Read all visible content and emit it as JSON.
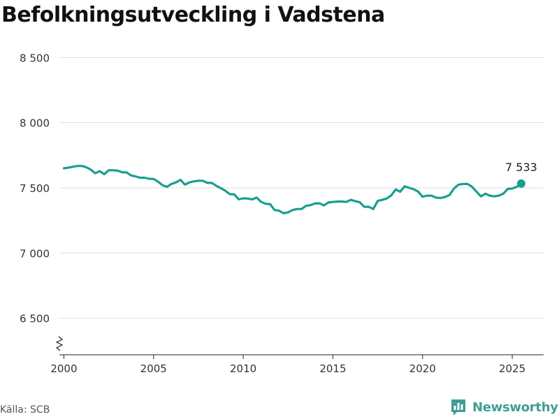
{
  "title": "Befolkningsutveckling i Vadstena",
  "source": "Källa: SCB",
  "brand": {
    "name": "Newsworthy",
    "icon": "newsworthy-logo-icon",
    "color": "#3f9e94"
  },
  "chart_data": {
    "type": "line",
    "title": "Befolkningsutveckling i Vadstena",
    "xlabel": "",
    "ylabel": "",
    "xlim": [
      1999.75,
      2026.75
    ],
    "ylim": [
      6220,
      8700
    ],
    "y_ticks": [
      {
        "value": 6500,
        "label": "6 500"
      },
      {
        "value": 7000,
        "label": "7 000"
      },
      {
        "value": 7500,
        "label": "7 500"
      },
      {
        "value": 8000,
        "label": "8 000"
      },
      {
        "value": 8500,
        "label": "8 500"
      }
    ],
    "x_ticks": [
      {
        "value": 2000,
        "label": "2000"
      },
      {
        "value": 2005,
        "label": "2005"
      },
      {
        "value": 2010,
        "label": "2010"
      },
      {
        "value": 2015,
        "label": "2015"
      },
      {
        "value": 2020,
        "label": "2020"
      },
      {
        "value": 2025,
        "label": "2025"
      }
    ],
    "grid": "horizontal",
    "axis_break": true,
    "line_color": "#1a9e8f",
    "end_label": "7 533",
    "series": [
      {
        "points": [
          [
            2000.0,
            7650
          ],
          [
            2000.25,
            7655
          ],
          [
            2000.5,
            7662
          ],
          [
            2000.75,
            7668
          ],
          [
            2001.0,
            7668
          ],
          [
            2001.25,
            7658
          ],
          [
            2001.5,
            7640
          ],
          [
            2001.75,
            7612
          ],
          [
            2002.0,
            7628
          ],
          [
            2002.25,
            7605
          ],
          [
            2002.5,
            7635
          ],
          [
            2002.75,
            7635
          ],
          [
            2003.0,
            7632
          ],
          [
            2003.25,
            7620
          ],
          [
            2003.5,
            7618
          ],
          [
            2003.75,
            7595
          ],
          [
            2004.0,
            7588
          ],
          [
            2004.25,
            7578
          ],
          [
            2004.5,
            7578
          ],
          [
            2004.75,
            7570
          ],
          [
            2005.0,
            7568
          ],
          [
            2005.25,
            7548
          ],
          [
            2005.5,
            7520
          ],
          [
            2005.75,
            7508
          ],
          [
            2006.0,
            7530
          ],
          [
            2006.25,
            7542
          ],
          [
            2006.5,
            7562
          ],
          [
            2006.75,
            7525
          ],
          [
            2007.0,
            7542
          ],
          [
            2007.25,
            7550
          ],
          [
            2007.5,
            7555
          ],
          [
            2007.75,
            7555
          ],
          [
            2008.0,
            7538
          ],
          [
            2008.25,
            7538
          ],
          [
            2008.5,
            7515
          ],
          [
            2008.75,
            7498
          ],
          [
            2009.0,
            7478
          ],
          [
            2009.25,
            7452
          ],
          [
            2009.5,
            7450
          ],
          [
            2009.75,
            7412
          ],
          [
            2010.0,
            7420
          ],
          [
            2010.25,
            7418
          ],
          [
            2010.5,
            7412
          ],
          [
            2010.75,
            7425
          ],
          [
            2011.0,
            7392
          ],
          [
            2011.25,
            7378
          ],
          [
            2011.5,
            7375
          ],
          [
            2011.75,
            7330
          ],
          [
            2012.0,
            7325
          ],
          [
            2012.25,
            7305
          ],
          [
            2012.5,
            7312
          ],
          [
            2012.75,
            7330
          ],
          [
            2013.0,
            7338
          ],
          [
            2013.25,
            7338
          ],
          [
            2013.5,
            7362
          ],
          [
            2013.75,
            7368
          ],
          [
            2014.0,
            7380
          ],
          [
            2014.25,
            7382
          ],
          [
            2014.5,
            7365
          ],
          [
            2014.75,
            7388
          ],
          [
            2015.0,
            7392
          ],
          [
            2015.25,
            7395
          ],
          [
            2015.5,
            7395
          ],
          [
            2015.75,
            7392
          ],
          [
            2016.0,
            7408
          ],
          [
            2016.25,
            7398
          ],
          [
            2016.5,
            7390
          ],
          [
            2016.75,
            7355
          ],
          [
            2017.0,
            7355
          ],
          [
            2017.25,
            7338
          ],
          [
            2017.5,
            7400
          ],
          [
            2017.75,
            7408
          ],
          [
            2018.0,
            7418
          ],
          [
            2018.25,
            7442
          ],
          [
            2018.5,
            7488
          ],
          [
            2018.75,
            7470
          ],
          [
            2019.0,
            7512
          ],
          [
            2019.25,
            7500
          ],
          [
            2019.5,
            7490
          ],
          [
            2019.75,
            7472
          ],
          [
            2020.0,
            7432
          ],
          [
            2020.25,
            7440
          ],
          [
            2020.5,
            7440
          ],
          [
            2020.75,
            7425
          ],
          [
            2021.0,
            7422
          ],
          [
            2021.25,
            7430
          ],
          [
            2021.5,
            7445
          ],
          [
            2021.75,
            7495
          ],
          [
            2022.0,
            7525
          ],
          [
            2022.25,
            7530
          ],
          [
            2022.5,
            7530
          ],
          [
            2022.75,
            7510
          ],
          [
            2023.0,
            7472
          ],
          [
            2023.25,
            7435
          ],
          [
            2023.5,
            7455
          ],
          [
            2023.75,
            7440
          ],
          [
            2024.0,
            7435
          ],
          [
            2024.25,
            7440
          ],
          [
            2024.5,
            7455
          ],
          [
            2024.75,
            7492
          ],
          [
            2025.0,
            7495
          ],
          [
            2025.25,
            7508
          ],
          [
            2025.5,
            7533
          ]
        ]
      }
    ]
  }
}
